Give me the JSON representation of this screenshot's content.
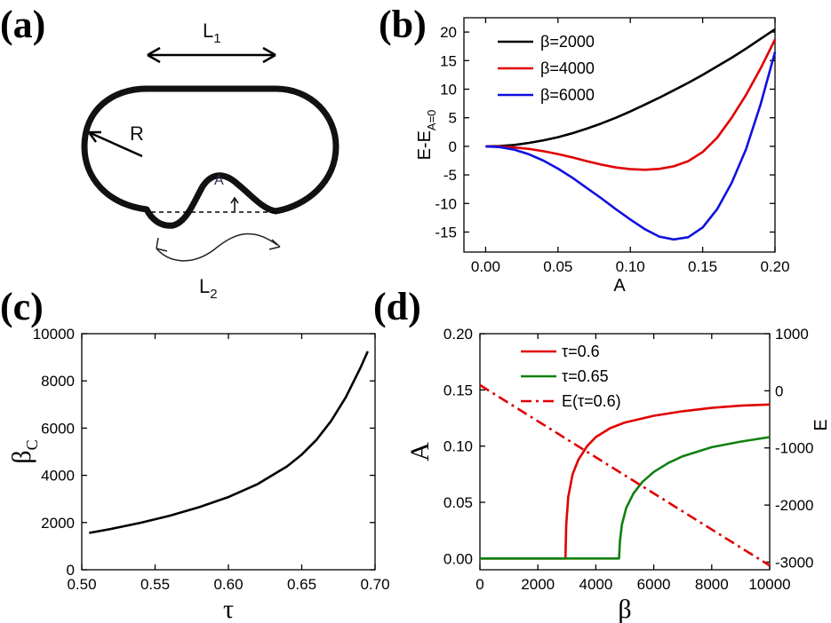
{
  "panel_labels": [
    "(a)",
    "(b)",
    "(c)",
    "(d)"
  ],
  "schematic": {
    "label_L1": "L",
    "label_L1_sub": "1",
    "label_L2": "L",
    "label_L2_sub": "2",
    "label_R": "R",
    "label_A": "A"
  },
  "chart_data": [
    {
      "panel": "(b)",
      "type": "line",
      "xlabel": "A",
      "ylabel": "E-E",
      "ylabel_sub": "A=0",
      "xlim": [
        -0.015,
        0.2
      ],
      "ylim": [
        -18.5,
        22.5
      ],
      "xticks": [
        0.0,
        0.05,
        0.1,
        0.15,
        0.2
      ],
      "xtick_labels": [
        "0.00",
        "0.05",
        "0.10",
        "0.15",
        "0.20"
      ],
      "yticks": [
        -15,
        -10,
        -5,
        0,
        5,
        10,
        15,
        20
      ],
      "ytick_labels": [
        "-15",
        "-10",
        "-5",
        "0",
        "5",
        "10",
        "15",
        "20"
      ],
      "legend_position": "top-left",
      "series": [
        {
          "name": "β=2000",
          "color": "#000000",
          "x": [
            0,
            0.01,
            0.02,
            0.03,
            0.04,
            0.05,
            0.06,
            0.07,
            0.08,
            0.09,
            0.1,
            0.11,
            0.12,
            0.13,
            0.14,
            0.15,
            0.16,
            0.17,
            0.18,
            0.19,
            0.2
          ],
          "y": [
            0,
            0.05,
            0.25,
            0.6,
            1.05,
            1.6,
            2.3,
            3.1,
            4.0,
            5.0,
            6.1,
            7.3,
            8.5,
            9.8,
            11.1,
            12.5,
            14.0,
            15.5,
            17.1,
            18.8,
            20.5
          ]
        },
        {
          "name": "β=4000",
          "color": "#e00000",
          "x": [
            0,
            0.01,
            0.02,
            0.03,
            0.04,
            0.05,
            0.06,
            0.07,
            0.08,
            0.09,
            0.1,
            0.11,
            0.12,
            0.13,
            0.14,
            0.15,
            0.16,
            0.17,
            0.18,
            0.19,
            0.2
          ],
          "y": [
            0,
            -0.05,
            -0.2,
            -0.45,
            -0.85,
            -1.35,
            -1.95,
            -2.6,
            -3.2,
            -3.7,
            -4.0,
            -4.1,
            -3.95,
            -3.5,
            -2.6,
            -1.0,
            1.5,
            5.0,
            9.0,
            13.6,
            18.7
          ]
        },
        {
          "name": "β=6000",
          "color": "#1010e0",
          "x": [
            0,
            0.01,
            0.02,
            0.03,
            0.04,
            0.05,
            0.06,
            0.07,
            0.08,
            0.09,
            0.1,
            0.11,
            0.12,
            0.13,
            0.14,
            0.15,
            0.16,
            0.17,
            0.18,
            0.19,
            0.2
          ],
          "y": [
            0,
            -0.15,
            -0.6,
            -1.4,
            -2.5,
            -3.9,
            -5.5,
            -7.3,
            -9.1,
            -11.0,
            -12.8,
            -14.5,
            -15.8,
            -16.3,
            -15.9,
            -14.2,
            -11.0,
            -6.4,
            -0.5,
            7.3,
            16.5
          ]
        }
      ]
    },
    {
      "panel": "(c)",
      "type": "line",
      "xlabel": "τ",
      "ylabel": "β",
      "ylabel_sub": "C",
      "xlim": [
        0.5,
        0.7
      ],
      "ylim": [
        0,
        10000
      ],
      "xticks": [
        0.5,
        0.55,
        0.6,
        0.65,
        0.7
      ],
      "xtick_labels": [
        "0.50",
        "0.55",
        "0.60",
        "0.65",
        "0.70"
      ],
      "yticks": [
        0,
        2000,
        4000,
        6000,
        8000,
        10000
      ],
      "ytick_labels": [
        "0",
        "2000",
        "4000",
        "6000",
        "8000",
        "10000"
      ],
      "series": [
        {
          "color": "#000000",
          "x": [
            0.505,
            0.52,
            0.54,
            0.56,
            0.58,
            0.6,
            0.62,
            0.64,
            0.65,
            0.66,
            0.67,
            0.68,
            0.69,
            0.695
          ],
          "y": [
            1560,
            1730,
            1990,
            2290,
            2650,
            3080,
            3630,
            4380,
            4880,
            5500,
            6300,
            7300,
            8550,
            9250
          ]
        }
      ]
    },
    {
      "panel": "(d)",
      "type": "line",
      "xlabel": "β",
      "ylabel": "A",
      "ylabel_right": "E",
      "xlim": [
        0,
        10000
      ],
      "ylim": [
        -0.01,
        0.2
      ],
      "ylim_right": [
        -3133,
        1000
      ],
      "xticks": [
        0,
        2000,
        4000,
        6000,
        8000,
        10000
      ],
      "xtick_labels": [
        "0",
        "2000",
        "4000",
        "6000",
        "8000",
        "10000"
      ],
      "yticks": [
        0.0,
        0.05,
        0.1,
        0.15,
        0.2
      ],
      "ytick_labels": [
        "0.00",
        "0.05",
        "0.10",
        "0.15",
        "0.20"
      ],
      "yticks_right": [
        -3000,
        -2000,
        -1000,
        0,
        1000
      ],
      "ytick_labels_right": [
        "-3000",
        "-2000",
        "-1000",
        "0",
        "1000"
      ],
      "legend_position": "top-center",
      "series": [
        {
          "name": "τ=0.6",
          "color": "#e00000",
          "axis": "left",
          "style": "solid",
          "x": [
            0,
            2950,
            2950,
            2980,
            3050,
            3200,
            3400,
            3700,
            4000,
            4500,
            5000,
            6000,
            7000,
            8000,
            9000,
            10000
          ],
          "y": [
            0,
            0,
            0,
            0.03,
            0.055,
            0.075,
            0.088,
            0.1,
            0.108,
            0.116,
            0.121,
            0.127,
            0.131,
            0.134,
            0.136,
            0.137
          ]
        },
        {
          "name": "τ=0.65",
          "color": "#108010",
          "axis": "left",
          "style": "solid",
          "x": [
            0,
            4800,
            4800,
            4830,
            4900,
            5050,
            5300,
            5600,
            6000,
            6500,
            7000,
            8000,
            9000,
            10000
          ],
          "y": [
            0,
            0,
            0,
            0.015,
            0.03,
            0.045,
            0.058,
            0.068,
            0.077,
            0.085,
            0.091,
            0.099,
            0.104,
            0.108
          ]
        },
        {
          "name": "E(τ=0.6)",
          "color": "#e00000",
          "axis": "right",
          "style": "dashdot",
          "x": [
            0,
            10000
          ],
          "y": [
            100,
            -3060
          ]
        }
      ]
    }
  ]
}
